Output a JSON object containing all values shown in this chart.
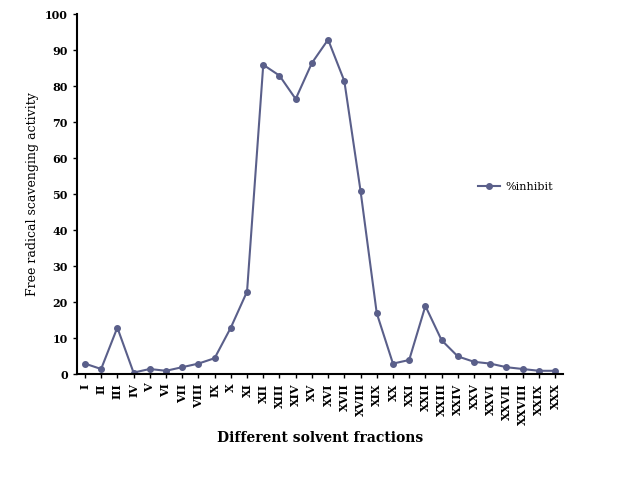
{
  "x_labels": [
    "I",
    "II",
    "III",
    "IV",
    "V",
    "VI",
    "VII",
    "VIII",
    "IX",
    "X",
    "XI",
    "XII",
    "XIII",
    "XIV",
    "XV",
    "XVI",
    "XVII",
    "XVIII",
    "XIX",
    "XX",
    "XXI",
    "XXII",
    "XXIII",
    "XXIV",
    "XXV",
    "XXVI",
    "XXVII",
    "XXVIII",
    "XXIX",
    "XXX"
  ],
  "y_values": [
    3,
    1.5,
    13,
    0.5,
    1.5,
    1,
    2,
    3,
    4.5,
    13,
    23,
    86,
    83,
    76.5,
    86.5,
    93,
    81.5,
    51,
    17,
    3,
    4,
    19,
    9.5,
    5,
    3.5,
    3,
    2,
    1.5,
    1,
    1
  ],
  "line_color": "#5A5F8A",
  "marker": "o",
  "marker_size": 4,
  "line_width": 1.5,
  "ylabel": "Free radical scavenging activity",
  "xlabel": "Different solvent fractions",
  "ylim": [
    0,
    100
  ],
  "yticks": [
    0,
    10,
    20,
    30,
    40,
    50,
    60,
    70,
    80,
    90,
    100
  ],
  "legend_label": "%inhibit",
  "title": "",
  "background_color": "#ffffff",
  "tick_fontsize": 8,
  "axis_label_fontsize": 9
}
